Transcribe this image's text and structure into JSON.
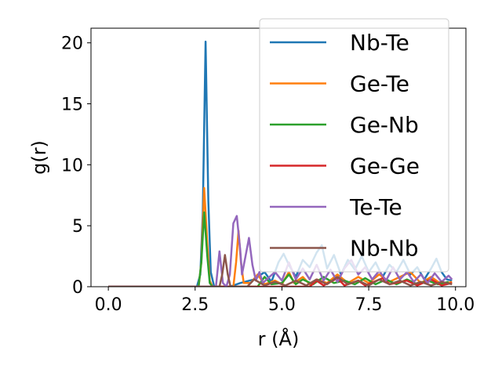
{
  "chart_data": {
    "type": "line",
    "xlabel": "r (Å)",
    "ylabel": "g(r)",
    "xlim": [
      -0.5,
      10.3
    ],
    "ylim": [
      0,
      21.2
    ],
    "xticks": [
      0.0,
      2.5,
      5.0,
      7.5,
      10.0
    ],
    "xtick_labels": [
      "0.0",
      "2.5",
      "5.0",
      "7.5",
      "10.0"
    ],
    "yticks": [
      0,
      5,
      10,
      15,
      20
    ],
    "ytick_labels": [
      "0",
      "5",
      "10",
      "15",
      "20"
    ],
    "grid": false,
    "legend_position": "top-right",
    "series": [
      {
        "name": "Nb-Te",
        "color": "#1f77b4",
        "points": [
          [
            0,
            0
          ],
          [
            2.55,
            0
          ],
          [
            2.65,
            1.0
          ],
          [
            2.72,
            6.0
          ],
          [
            2.8,
            20.1
          ],
          [
            2.88,
            7.0
          ],
          [
            2.95,
            1.2
          ],
          [
            3.05,
            0
          ],
          [
            3.5,
            0
          ],
          [
            3.8,
            0.3
          ],
          [
            4.2,
            0.6
          ],
          [
            4.5,
            1.2
          ],
          [
            4.7,
            0.4
          ],
          [
            4.9,
            2.0
          ],
          [
            5.05,
            2.7
          ],
          [
            5.2,
            1.8
          ],
          [
            5.4,
            0.8
          ],
          [
            5.6,
            2.2
          ],
          [
            5.8,
            1.6
          ],
          [
            6.0,
            2.8
          ],
          [
            6.15,
            3.4
          ],
          [
            6.3,
            1.5
          ],
          [
            6.5,
            2.6
          ],
          [
            6.7,
            1.0
          ],
          [
            6.9,
            2.2
          ],
          [
            7.1,
            1.4
          ],
          [
            7.3,
            2.5
          ],
          [
            7.5,
            1.2
          ],
          [
            7.7,
            2.0
          ],
          [
            7.9,
            0.8
          ],
          [
            8.1,
            1.8
          ],
          [
            8.3,
            1.2
          ],
          [
            8.5,
            2.2
          ],
          [
            8.7,
            1.0
          ],
          [
            8.9,
            1.6
          ],
          [
            9.1,
            0.6
          ],
          [
            9.3,
            1.5
          ],
          [
            9.45,
            2.3
          ],
          [
            9.6,
            1.2
          ],
          [
            9.75,
            0.6
          ],
          [
            9.9,
            0.5
          ]
        ]
      },
      {
        "name": "Ge-Te",
        "color": "#ff7f0e",
        "points": [
          [
            0,
            0
          ],
          [
            2.6,
            0
          ],
          [
            2.68,
            2.0
          ],
          [
            2.76,
            8.1
          ],
          [
            2.85,
            3.5
          ],
          [
            2.92,
            0.5
          ],
          [
            3.0,
            0
          ],
          [
            3.6,
            0
          ],
          [
            3.68,
            2.0
          ],
          [
            3.75,
            4.6
          ],
          [
            3.82,
            2.0
          ],
          [
            3.9,
            0.3
          ],
          [
            4.1,
            0.3
          ],
          [
            4.3,
            1.0
          ],
          [
            4.5,
            0.2
          ],
          [
            4.8,
            0.5
          ],
          [
            5.0,
            0.2
          ],
          [
            5.2,
            1.2
          ],
          [
            5.35,
            0.3
          ],
          [
            5.6,
            0.8
          ],
          [
            5.8,
            0.2
          ],
          [
            6.0,
            0.6
          ],
          [
            6.3,
            0.3
          ],
          [
            6.6,
            1.0
          ],
          [
            6.9,
            0.3
          ],
          [
            7.2,
            0.8
          ],
          [
            7.5,
            0.3
          ],
          [
            7.8,
            1.0
          ],
          [
            8.1,
            0.4
          ],
          [
            8.4,
            0.8
          ],
          [
            8.7,
            1.2
          ],
          [
            9.0,
            0.3
          ],
          [
            9.3,
            0.8
          ],
          [
            9.6,
            0.2
          ],
          [
            9.9,
            0.4
          ]
        ]
      },
      {
        "name": "Ge-Nb",
        "color": "#2ca02c",
        "points": [
          [
            0,
            0
          ],
          [
            2.6,
            0
          ],
          [
            2.68,
            2.0
          ],
          [
            2.76,
            6.1
          ],
          [
            2.85,
            2.5
          ],
          [
            2.92,
            0.3
          ],
          [
            3.0,
            0
          ],
          [
            4.3,
            0
          ],
          [
            4.5,
            0.8
          ],
          [
            4.7,
            0.2
          ],
          [
            5.0,
            0.3
          ],
          [
            5.2,
            1.0
          ],
          [
            5.4,
            0.2
          ],
          [
            5.6,
            0.6
          ],
          [
            5.9,
            0.2
          ],
          [
            6.2,
            0.8
          ],
          [
            6.5,
            0.3
          ],
          [
            6.8,
            0.5
          ],
          [
            7.1,
            0.2
          ],
          [
            7.4,
            0.7
          ],
          [
            7.7,
            0.2
          ],
          [
            8.0,
            0.6
          ],
          [
            8.3,
            0.2
          ],
          [
            8.6,
            0.6
          ],
          [
            8.9,
            0.2
          ],
          [
            9.2,
            0.5
          ],
          [
            9.5,
            0.2
          ],
          [
            9.8,
            0.4
          ]
        ]
      },
      {
        "name": "Ge-Ge",
        "color": "#d62728",
        "points": [
          [
            0,
            0
          ],
          [
            5.8,
            0
          ],
          [
            6.0,
            0.5
          ],
          [
            6.2,
            0.1
          ],
          [
            6.6,
            0.7
          ],
          [
            6.8,
            0.1
          ],
          [
            7.2,
            0.5
          ],
          [
            7.4,
            0.1
          ],
          [
            7.9,
            0.7
          ],
          [
            8.1,
            0.2
          ],
          [
            8.6,
            0.5
          ],
          [
            8.9,
            0.1
          ],
          [
            9.3,
            0.6
          ],
          [
            9.6,
            0.1
          ],
          [
            9.9,
            0.3
          ]
        ]
      },
      {
        "name": "Te-Te",
        "color": "#9467bd",
        "points": [
          [
            0,
            0
          ],
          [
            3.1,
            0
          ],
          [
            3.2,
            2.9
          ],
          [
            3.3,
            0.3
          ],
          [
            3.4,
            0
          ],
          [
            3.5,
            1.0
          ],
          [
            3.6,
            5.2
          ],
          [
            3.7,
            5.8
          ],
          [
            3.8,
            3.0
          ],
          [
            3.85,
            1.0
          ],
          [
            3.95,
            2.5
          ],
          [
            4.05,
            4.0
          ],
          [
            4.15,
            1.8
          ],
          [
            4.25,
            0.5
          ],
          [
            4.35,
            1.2
          ],
          [
            4.45,
            0.3
          ],
          [
            4.6,
            0.7
          ],
          [
            4.8,
            1.2
          ],
          [
            5.0,
            0.5
          ],
          [
            5.2,
            2.0
          ],
          [
            5.4,
            0.6
          ],
          [
            5.6,
            1.5
          ],
          [
            5.8,
            0.6
          ],
          [
            6.0,
            1.8
          ],
          [
            6.2,
            0.5
          ],
          [
            6.4,
            1.4
          ],
          [
            6.6,
            0.4
          ],
          [
            6.8,
            1.5
          ],
          [
            7.0,
            2.2
          ],
          [
            7.2,
            1.0
          ],
          [
            7.4,
            1.6
          ],
          [
            7.6,
            0.6
          ],
          [
            7.8,
            1.3
          ],
          [
            8.0,
            0.5
          ],
          [
            8.2,
            1.6
          ],
          [
            8.4,
            0.6
          ],
          [
            8.6,
            1.2
          ],
          [
            8.8,
            0.4
          ],
          [
            9.0,
            1.0
          ],
          [
            9.2,
            0.3
          ],
          [
            9.4,
            1.1
          ],
          [
            9.6,
            0.4
          ],
          [
            9.8,
            0.9
          ],
          [
            9.9,
            0.6
          ]
        ]
      },
      {
        "name": "Nb-Nb",
        "color": "#8c564b",
        "points": [
          [
            0,
            0
          ],
          [
            3.2,
            0
          ],
          [
            3.28,
            1.0
          ],
          [
            3.36,
            2.6
          ],
          [
            3.44,
            1.0
          ],
          [
            3.52,
            0
          ],
          [
            4.0,
            0
          ],
          [
            4.2,
            0.6
          ],
          [
            4.5,
            0.1
          ],
          [
            4.8,
            0.4
          ],
          [
            5.1,
            0.1
          ],
          [
            5.4,
            0.5
          ],
          [
            5.7,
            0.1
          ],
          [
            6.0,
            0.6
          ],
          [
            6.3,
            0.2
          ],
          [
            6.6,
            0.8
          ],
          [
            6.9,
            0.2
          ],
          [
            7.2,
            0.5
          ],
          [
            7.5,
            0.1
          ],
          [
            7.8,
            0.6
          ],
          [
            8.1,
            0.2
          ],
          [
            8.4,
            0.5
          ],
          [
            8.7,
            0.1
          ],
          [
            9.0,
            0.4
          ],
          [
            9.3,
            0.1
          ],
          [
            9.6,
            0.4
          ],
          [
            9.9,
            0.2
          ]
        ]
      }
    ]
  }
}
